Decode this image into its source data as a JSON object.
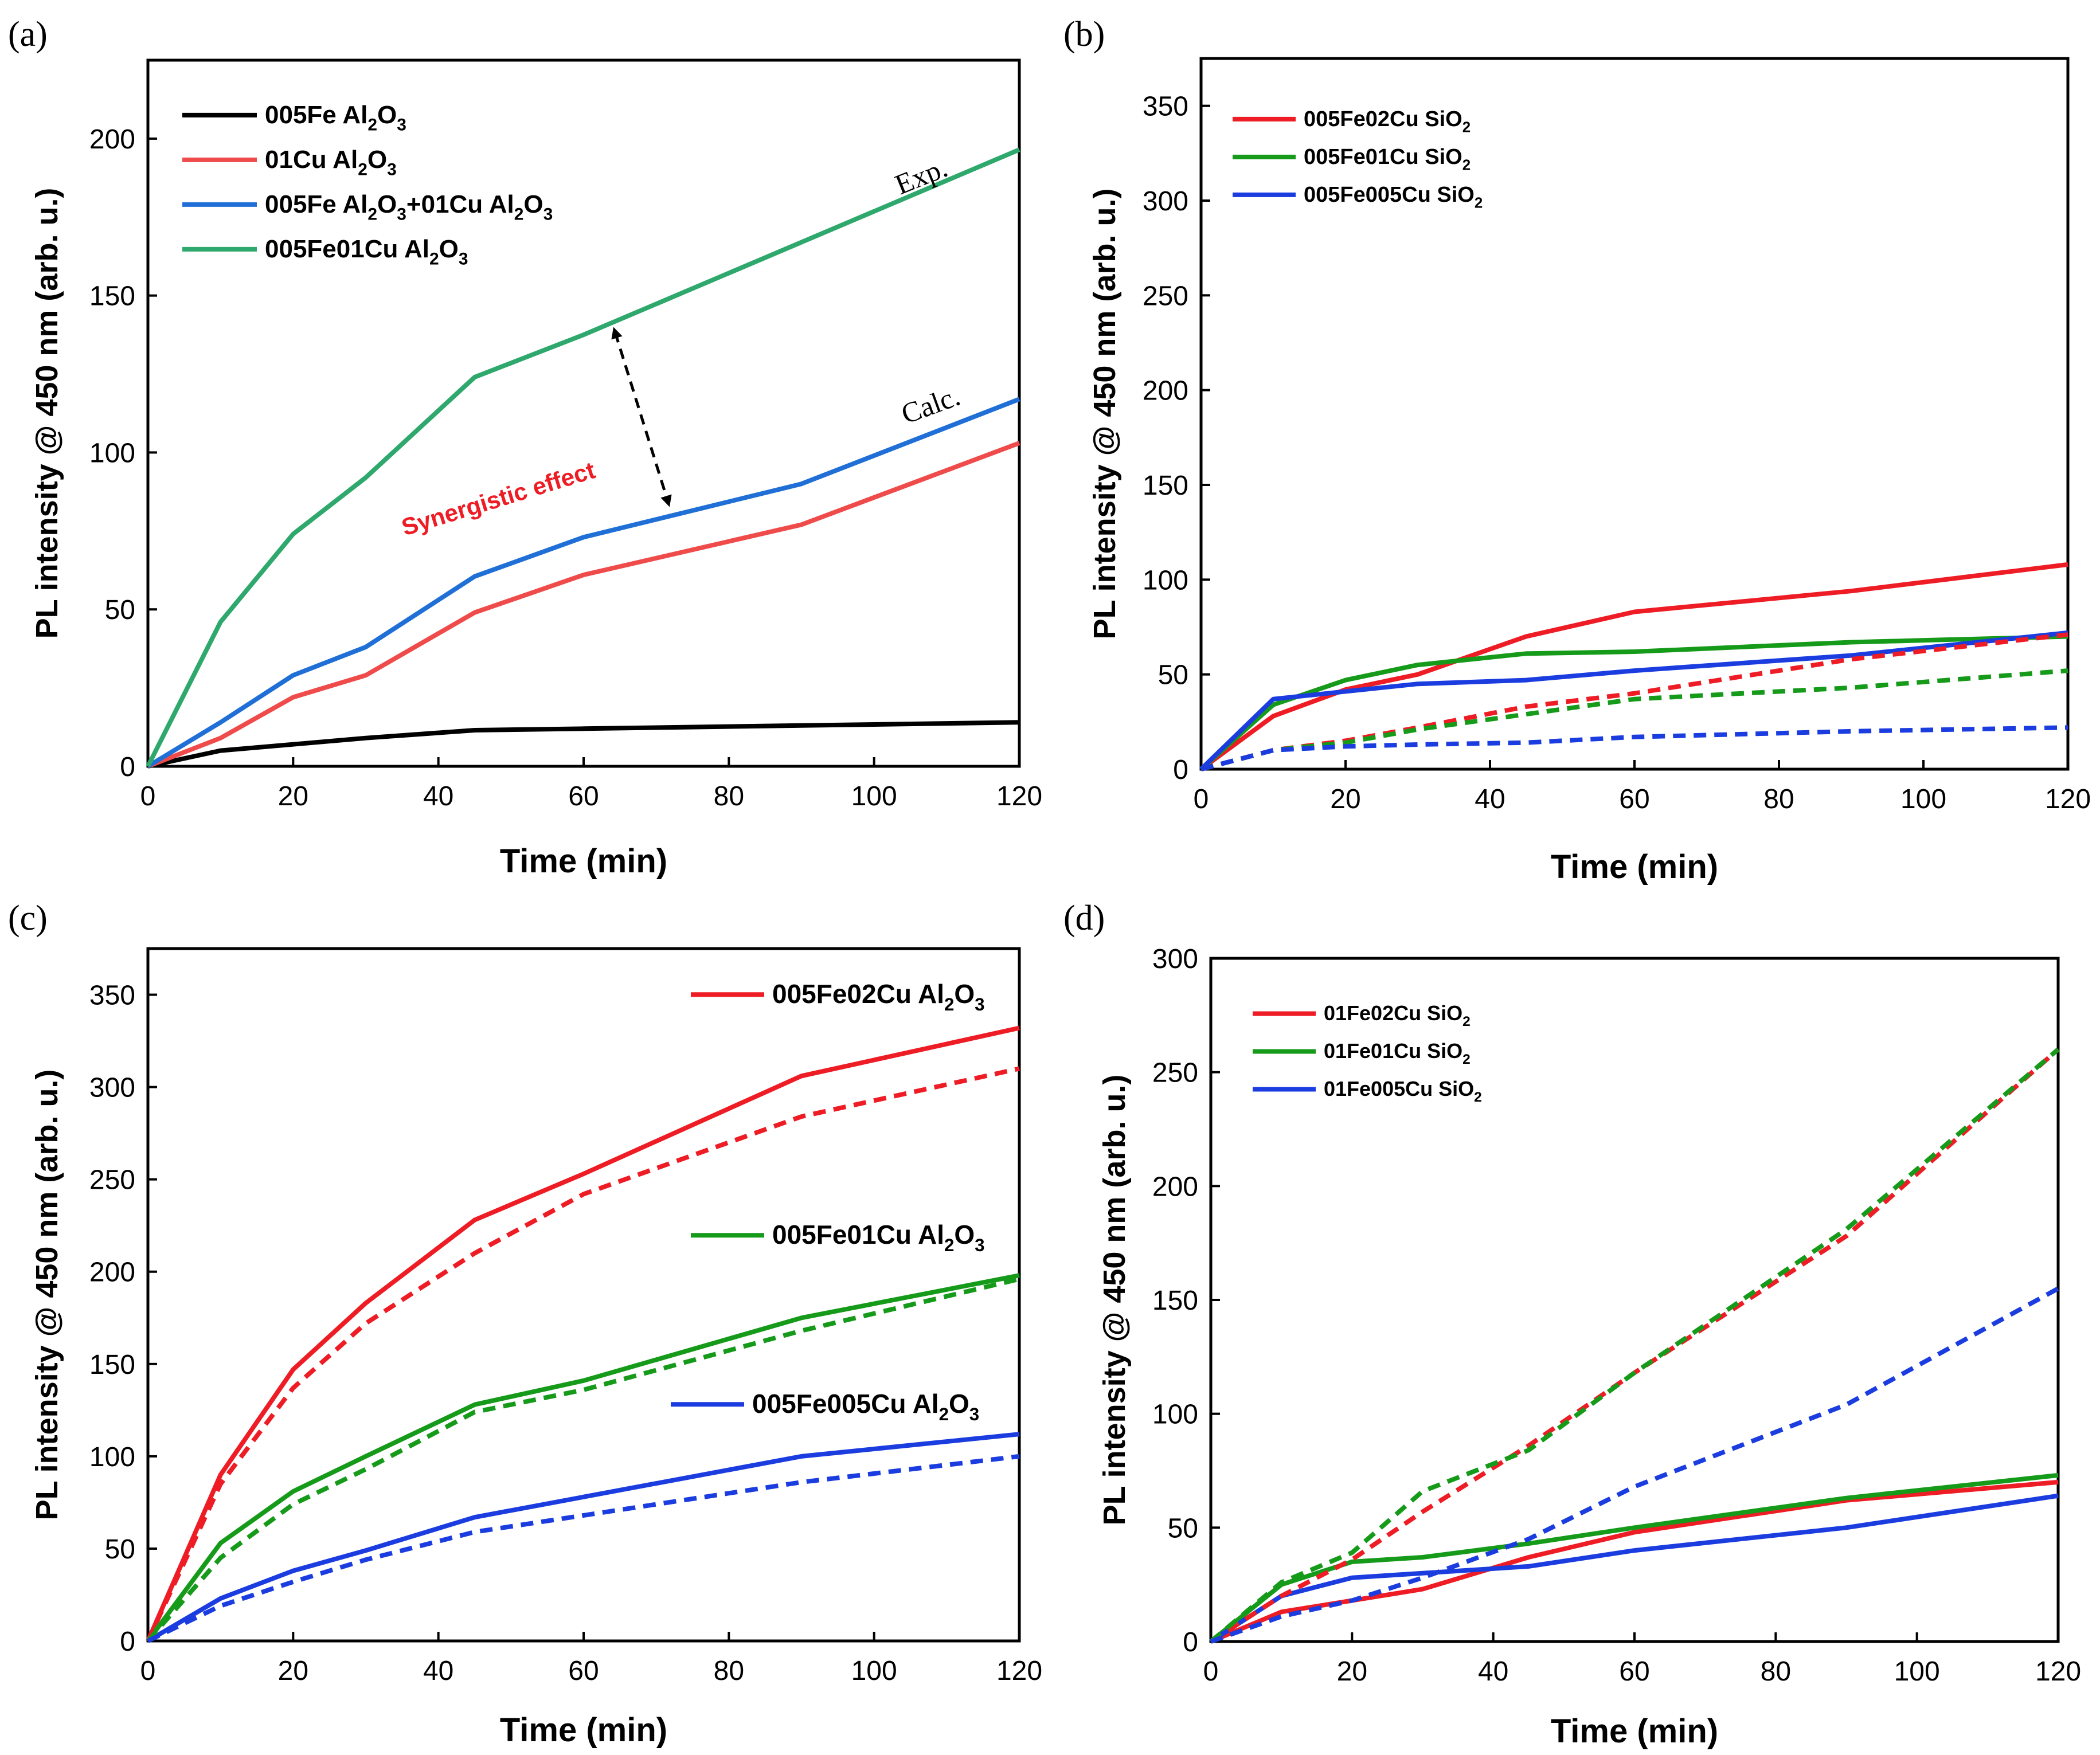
{
  "figure_title": "PL intensity vs time panels",
  "chart_data": [
    {
      "id": "a",
      "panel_label": "(a)",
      "type": "line",
      "xlabel": "Time (min)",
      "ylabel": "PL intensity @ 450 nm (arb. u.)",
      "xlim": [
        0,
        120
      ],
      "ylim": [
        0,
        225
      ],
      "xticks": [
        0,
        20,
        40,
        60,
        80,
        100,
        120
      ],
      "yticks": [
        0,
        50,
        100,
        150,
        200
      ],
      "legend_position": "top-left",
      "legend_bold": true,
      "series": [
        {
          "name": "005Fe Al2O3",
          "label_main": "005Fe Al",
          "label_sub": "2",
          "label_tail": "O",
          "label_sub2": "3",
          "color": "#000000",
          "dashed": false,
          "x": [
            0,
            10,
            20,
            30,
            45,
            60,
            90,
            120
          ],
          "y": [
            0,
            5,
            7,
            9,
            11.5,
            12,
            13,
            14
          ]
        },
        {
          "name": "01Cu Al2O3",
          "label_main": "01Cu Al",
          "label_sub": "2",
          "label_tail": "O",
          "label_sub2": "3",
          "color": "#ef4b4b",
          "dashed": false,
          "x": [
            0,
            10,
            20,
            30,
            45,
            60,
            90,
            120
          ],
          "y": [
            0,
            9,
            22,
            29,
            49,
            61,
            77,
            103
          ]
        },
        {
          "name": "005Fe Al2O3+01Cu Al2O3",
          "label_main": "005Fe Al",
          "label_sub": "2",
          "label_tail": "O",
          "label_sub2": "3",
          "label_rest": "+01Cu Al",
          "label_sub3": "2",
          "label_tail3": "O",
          "label_sub4": "3",
          "color": "#1f6fd6",
          "dashed": false,
          "x": [
            0,
            10,
            20,
            30,
            45,
            60,
            90,
            120
          ],
          "y": [
            0,
            14,
            29,
            38,
            60.5,
            73,
            90,
            117
          ]
        },
        {
          "name": "005Fe01Cu Al2O3",
          "label_main": "005Fe01Cu Al",
          "label_sub": "2",
          "label_tail": "O",
          "label_sub2": "3",
          "color": "#2ea86c",
          "dashed": false,
          "x": [
            0,
            10,
            20,
            30,
            45,
            60,
            90,
            120
          ],
          "y": [
            0,
            46,
            74,
            92,
            124,
            137.5,
            167,
            196.5
          ]
        }
      ],
      "annotations": {
        "exp": "Exp.",
        "calc": "Calc.",
        "synergy": "Synergistic effect"
      }
    },
    {
      "id": "b",
      "panel_label": "(b)",
      "type": "line",
      "xlabel": "Time (min)",
      "ylabel": "PL intensity @ 450 nm (arb. u.)",
      "xlim": [
        0,
        120
      ],
      "ylim": [
        0,
        375
      ],
      "xticks": [
        0,
        20,
        40,
        60,
        80,
        100,
        120
      ],
      "yticks": [
        0,
        50,
        100,
        150,
        200,
        250,
        300,
        350
      ],
      "legend_position": "top-left",
      "legend_bold": true,
      "series": [
        {
          "name": "005Fe02Cu SiO2",
          "label_main": "005Fe02Cu SiO",
          "label_sub": "2",
          "color": "#ee1c24",
          "dashed": false,
          "x": [
            0,
            10,
            20,
            30,
            45,
            60,
            90,
            120
          ],
          "y": [
            0,
            28,
            42,
            50,
            70,
            83,
            94,
            108
          ]
        },
        {
          "name": "005Fe01Cu SiO2",
          "label_main": "005Fe01Cu SiO",
          "label_sub": "2",
          "color": "#169a1a",
          "dashed": false,
          "x": [
            0,
            10,
            20,
            30,
            45,
            60,
            90,
            120
          ],
          "y": [
            0,
            34,
            47,
            55,
            61,
            62,
            67,
            70
          ]
        },
        {
          "name": "005Fe005Cu SiO2",
          "label_main": "005Fe005Cu SiO",
          "label_sub": "2",
          "color": "#1b3de0",
          "dashed": false,
          "x": [
            0,
            10,
            20,
            30,
            45,
            60,
            90,
            120
          ],
          "y": [
            0,
            37,
            41,
            45,
            47,
            52,
            60,
            72
          ]
        },
        {
          "name": "005Fe02Cu SiO2 (calc.)",
          "color": "#ee1c24",
          "dashed": true,
          "x": [
            0,
            10,
            20,
            30,
            45,
            60,
            90,
            120
          ],
          "y": [
            0,
            10,
            15,
            22,
            33,
            40,
            58,
            71
          ]
        },
        {
          "name": "005Fe01Cu SiO2 (calc.)",
          "color": "#169a1a",
          "dashed": true,
          "x": [
            0,
            10,
            20,
            30,
            45,
            60,
            90,
            120
          ],
          "y": [
            0,
            10,
            14,
            21,
            29,
            37,
            43,
            52
          ]
        },
        {
          "name": "005Fe005Cu SiO2 (calc.)",
          "color": "#1b3de0",
          "dashed": true,
          "x": [
            0,
            10,
            20,
            30,
            45,
            60,
            90,
            120
          ],
          "y": [
            0,
            10,
            12,
            13,
            14,
            17,
            20,
            22
          ]
        }
      ]
    },
    {
      "id": "c",
      "panel_label": "(c)",
      "type": "line",
      "xlabel": "Time (min)",
      "ylabel": "PL intensity @ 450 nm (arb. u.)",
      "xlim": [
        0,
        120
      ],
      "ylim": [
        0,
        375
      ],
      "xticks": [
        0,
        20,
        40,
        60,
        80,
        100,
        120
      ],
      "yticks": [
        0,
        50,
        100,
        150,
        200,
        250,
        300,
        350
      ],
      "legend_position": "right (next to curves)",
      "legend_bold": true,
      "series": [
        {
          "name": "005Fe02Cu Al2O3",
          "label_main": "005Fe02Cu Al",
          "label_sub": "2",
          "label_tail": "O",
          "label_sub2": "3",
          "color": "#ee1c24",
          "dashed": false,
          "x": [
            0,
            10,
            20,
            30,
            45,
            60,
            90,
            120
          ],
          "y": [
            0,
            90,
            147,
            183,
            228,
            253,
            306,
            332
          ]
        },
        {
          "name": "005Fe01Cu Al2O3",
          "label_main": "005Fe01Cu Al",
          "label_sub": "2",
          "label_tail": "O",
          "label_sub2": "3",
          "color": "#169a1a",
          "dashed": false,
          "x": [
            0,
            10,
            20,
            30,
            45,
            60,
            90,
            120
          ],
          "y": [
            0,
            53,
            81,
            100,
            128,
            141,
            175,
            198
          ]
        },
        {
          "name": "005Fe005Cu Al2O3",
          "label_main": "005Fe005Cu Al",
          "label_sub": "2",
          "label_tail": "O",
          "label_sub2": "3",
          "color": "#1b3de0",
          "dashed": false,
          "x": [
            0,
            10,
            20,
            30,
            45,
            60,
            90,
            120
          ],
          "y": [
            0,
            23,
            38,
            49,
            67,
            78,
            100,
            112
          ]
        },
        {
          "name": "005Fe02Cu Al2O3 (calc.)",
          "color": "#ee1c24",
          "dashed": true,
          "x": [
            0,
            10,
            20,
            30,
            45,
            60,
            90,
            120
          ],
          "y": [
            0,
            85,
            137,
            172,
            210,
            242,
            284,
            310
          ]
        },
        {
          "name": "005Fe01Cu Al2O3 (calc.)",
          "color": "#169a1a",
          "dashed": true,
          "x": [
            0,
            10,
            20,
            30,
            45,
            60,
            90,
            120
          ],
          "y": [
            0,
            45,
            74,
            93,
            124,
            136,
            168,
            196
          ]
        },
        {
          "name": "005Fe005Cu Al2O3 (calc.)",
          "color": "#1b3de0",
          "dashed": true,
          "x": [
            0,
            10,
            20,
            30,
            45,
            60,
            90,
            120
          ],
          "y": [
            0,
            19,
            32,
            44,
            59,
            68,
            86,
            100
          ]
        }
      ]
    },
    {
      "id": "d",
      "panel_label": "(d)",
      "type": "line",
      "xlabel": "Time (min)",
      "ylabel": "PL intensity @ 450 nm (arb. u.)",
      "xlim": [
        0,
        120
      ],
      "ylim": [
        0,
        300
      ],
      "xticks": [
        0,
        20,
        40,
        60,
        80,
        100,
        120
      ],
      "yticks": [
        0,
        50,
        100,
        150,
        200,
        250,
        300
      ],
      "legend_position": "top-left",
      "legend_bold": false,
      "series": [
        {
          "name": "01Fe02Cu SiO2",
          "label_main": "01Fe02Cu SiO",
          "label_sub": "2",
          "color": "#ee1c24",
          "dashed": false,
          "x": [
            0,
            10,
            20,
            30,
            45,
            60,
            90,
            120
          ],
          "y": [
            0,
            13,
            18,
            23,
            37,
            48,
            62,
            70
          ]
        },
        {
          "name": "01Fe01Cu SiO2",
          "label_main": "01Fe01Cu SiO",
          "label_sub": "2",
          "color": "#169a1a",
          "dashed": false,
          "x": [
            0,
            10,
            20,
            30,
            45,
            60,
            90,
            120
          ],
          "y": [
            0,
            25,
            35,
            37,
            43,
            50,
            63,
            73
          ]
        },
        {
          "name": "01Fe005Cu SiO2",
          "label_main": "01Fe005Cu SiO",
          "label_sub": "2",
          "color": "#1b3de0",
          "dashed": false,
          "x": [
            0,
            10,
            20,
            30,
            45,
            60,
            90,
            120
          ],
          "y": [
            0,
            20,
            28,
            30,
            33,
            40,
            50,
            64
          ]
        },
        {
          "name": "01Fe02Cu SiO2 (calc.)",
          "color": "#ee1c24",
          "dashed": true,
          "x": [
            0,
            10,
            20,
            30,
            45,
            60,
            90,
            120
          ],
          "y": [
            0,
            20,
            36,
            57,
            86,
            118,
            178,
            260
          ]
        },
        {
          "name": "01Fe01Cu SiO2 (calc.)",
          "color": "#169a1a",
          "dashed": true,
          "x": [
            0,
            10,
            20,
            30,
            45,
            60,
            90,
            120
          ],
          "y": [
            0,
            26,
            39,
            66,
            84,
            118,
            181,
            260
          ]
        },
        {
          "name": "01Fe005Cu SiO2 (calc.)",
          "color": "#1b3de0",
          "dashed": true,
          "x": [
            0,
            10,
            20,
            30,
            45,
            60,
            90,
            120
          ],
          "y": [
            0,
            11,
            18,
            28,
            45,
            68,
            104,
            155
          ]
        }
      ]
    }
  ]
}
